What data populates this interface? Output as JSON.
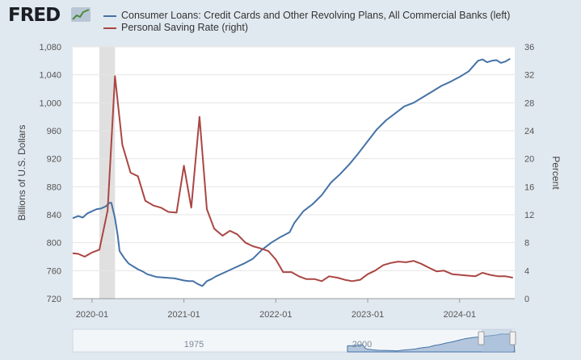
{
  "logo": {
    "text": "FRED"
  },
  "legend": [
    {
      "label": "Consumer Loans: Credit Cards and Other Revolving Plans, All Commercial Banks (left)",
      "color": "#4572a7"
    },
    {
      "label": "Personal Saving Rate (right)",
      "color": "#aa4643"
    }
  ],
  "chart_data": {
    "type": "line",
    "title": "",
    "xlabel": "",
    "y_left_label": "Billions of U.S. Dollars",
    "y_right_label": "Percent",
    "y_left_range": [
      720,
      1080
    ],
    "y_right_range": [
      0,
      36
    ],
    "y_left_ticks": [
      "720",
      "760",
      "800",
      "840",
      "880",
      "920",
      "960",
      "1,000",
      "1,040",
      "1,080"
    ],
    "y_right_ticks": [
      "0",
      "4",
      "8",
      "12",
      "16",
      "20",
      "24",
      "28",
      "32",
      "36"
    ],
    "x_ticks": [
      {
        "t": 2020.0,
        "label": "2020-01"
      },
      {
        "t": 2021.0,
        "label": "2021-01"
      },
      {
        "t": 2022.0,
        "label": "2022-01"
      },
      {
        "t": 2023.0,
        "label": "2023-01"
      },
      {
        "t": 2024.0,
        "label": "2024-01"
      }
    ],
    "x_range": [
      2019.79,
      2024.6
    ],
    "recession": [
      2020.08,
      2020.25
    ],
    "series": [
      {
        "name": "Consumer Loans: Credit Cards and Other Revolving Plans, All Commercial Banks",
        "axis": "left",
        "color": "#4572a7",
        "points": [
          [
            2019.79,
            835
          ],
          [
            2019.85,
            838
          ],
          [
            2019.9,
            836
          ],
          [
            2019.95,
            842
          ],
          [
            2020.0,
            845
          ],
          [
            2020.05,
            848
          ],
          [
            2020.1,
            849
          ],
          [
            2020.15,
            852
          ],
          [
            2020.19,
            857
          ],
          [
            2020.21,
            857
          ],
          [
            2020.25,
            835
          ],
          [
            2020.28,
            810
          ],
          [
            2020.3,
            788
          ],
          [
            2020.35,
            778
          ],
          [
            2020.4,
            770
          ],
          [
            2020.45,
            766
          ],
          [
            2020.5,
            762
          ],
          [
            2020.55,
            759
          ],
          [
            2020.6,
            755
          ],
          [
            2020.7,
            751
          ],
          [
            2020.8,
            750
          ],
          [
            2020.9,
            749
          ],
          [
            2021.0,
            746
          ],
          [
            2021.05,
            745
          ],
          [
            2021.1,
            745
          ],
          [
            2021.15,
            741
          ],
          [
            2021.2,
            738
          ],
          [
            2021.25,
            745
          ],
          [
            2021.3,
            748
          ],
          [
            2021.35,
            752
          ],
          [
            2021.45,
            758
          ],
          [
            2021.55,
            764
          ],
          [
            2021.65,
            770
          ],
          [
            2021.75,
            777
          ],
          [
            2021.85,
            790
          ],
          [
            2021.95,
            800
          ],
          [
            2022.05,
            808
          ],
          [
            2022.15,
            815
          ],
          [
            2022.2,
            828
          ],
          [
            2022.3,
            845
          ],
          [
            2022.4,
            855
          ],
          [
            2022.5,
            868
          ],
          [
            2022.6,
            886
          ],
          [
            2022.7,
            898
          ],
          [
            2022.8,
            912
          ],
          [
            2022.9,
            928
          ],
          [
            2023.0,
            945
          ],
          [
            2023.1,
            962
          ],
          [
            2023.2,
            975
          ],
          [
            2023.3,
            985
          ],
          [
            2023.4,
            995
          ],
          [
            2023.5,
            1000
          ],
          [
            2023.6,
            1008
          ],
          [
            2023.7,
            1016
          ],
          [
            2023.8,
            1024
          ],
          [
            2023.9,
            1030
          ],
          [
            2024.0,
            1037
          ],
          [
            2024.1,
            1045
          ],
          [
            2024.2,
            1060
          ],
          [
            2024.25,
            1062
          ],
          [
            2024.3,
            1058
          ],
          [
            2024.35,
            1060
          ],
          [
            2024.4,
            1061
          ],
          [
            2024.45,
            1057
          ],
          [
            2024.5,
            1059
          ],
          [
            2024.55,
            1063
          ]
        ]
      },
      {
        "name": "Personal Saving Rate",
        "axis": "right",
        "color": "#aa4643",
        "points": [
          [
            2019.79,
            6.5
          ],
          [
            2019.85,
            6.4
          ],
          [
            2019.92,
            6.0
          ],
          [
            2020.0,
            6.6
          ],
          [
            2020.08,
            7.0
          ],
          [
            2020.17,
            12.6
          ],
          [
            2020.25,
            31.8
          ],
          [
            2020.33,
            22.0
          ],
          [
            2020.42,
            18.0
          ],
          [
            2020.5,
            17.5
          ],
          [
            2020.58,
            14.0
          ],
          [
            2020.67,
            13.3
          ],
          [
            2020.75,
            13.0
          ],
          [
            2020.83,
            12.4
          ],
          [
            2020.92,
            12.3
          ],
          [
            2021.0,
            19.0
          ],
          [
            2021.08,
            13.0
          ],
          [
            2021.17,
            26.0
          ],
          [
            2021.25,
            12.8
          ],
          [
            2021.33,
            10.0
          ],
          [
            2021.42,
            9.0
          ],
          [
            2021.5,
            9.7
          ],
          [
            2021.58,
            9.2
          ],
          [
            2021.67,
            8.0
          ],
          [
            2021.75,
            7.5
          ],
          [
            2021.83,
            7.2
          ],
          [
            2021.92,
            6.8
          ],
          [
            2022.0,
            5.6
          ],
          [
            2022.08,
            3.8
          ],
          [
            2022.17,
            3.8
          ],
          [
            2022.25,
            3.2
          ],
          [
            2022.33,
            2.8
          ],
          [
            2022.42,
            2.8
          ],
          [
            2022.5,
            2.5
          ],
          [
            2022.58,
            3.2
          ],
          [
            2022.67,
            3.0
          ],
          [
            2022.75,
            2.7
          ],
          [
            2022.83,
            2.5
          ],
          [
            2022.92,
            2.7
          ],
          [
            2023.0,
            3.5
          ],
          [
            2023.08,
            4.0
          ],
          [
            2023.17,
            4.8
          ],
          [
            2023.25,
            5.1
          ],
          [
            2023.33,
            5.3
          ],
          [
            2023.42,
            5.2
          ],
          [
            2023.5,
            5.4
          ],
          [
            2023.58,
            5.0
          ],
          [
            2023.67,
            4.4
          ],
          [
            2023.75,
            3.9
          ],
          [
            2023.83,
            4.0
          ],
          [
            2023.92,
            3.5
          ],
          [
            2024.0,
            3.4
          ],
          [
            2024.08,
            3.3
          ],
          [
            2024.17,
            3.2
          ],
          [
            2024.25,
            3.7
          ],
          [
            2024.33,
            3.4
          ],
          [
            2024.42,
            3.2
          ],
          [
            2024.5,
            3.2
          ],
          [
            2024.58,
            3.0
          ]
        ]
      }
    ]
  },
  "navigator": {
    "start_label": "1975",
    "end_label": "2000"
  }
}
